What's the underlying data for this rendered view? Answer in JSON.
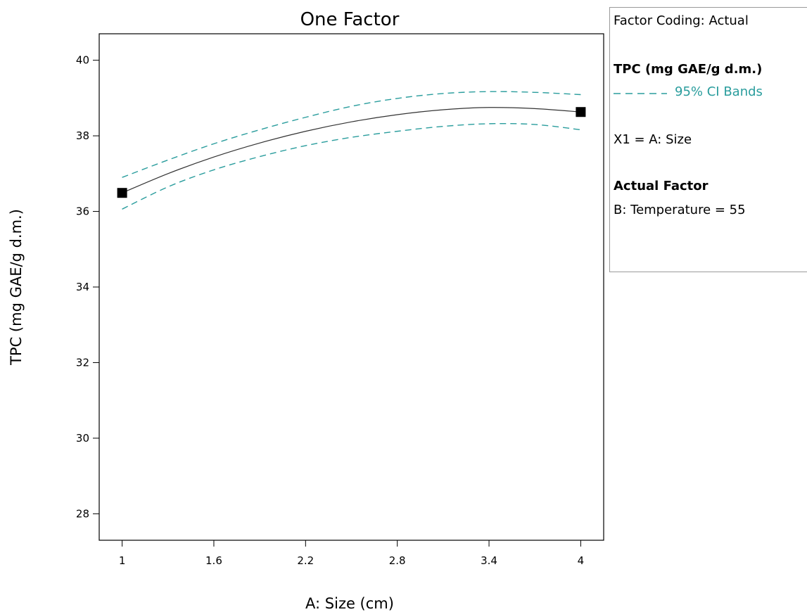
{
  "chart_data": {
    "type": "line",
    "title": "One Factor",
    "xlabel": "A: Size (cm)",
    "ylabel": "TPC (mg GAE/g d.m.)",
    "xlim": [
      0.85,
      4.15
    ],
    "ylim": [
      27.3,
      40.7
    ],
    "xticks": [
      "1",
      "1.6",
      "2.2",
      "2.8",
      "3.4",
      "4"
    ],
    "xtick_values": [
      1,
      1.6,
      2.2,
      2.8,
      3.4,
      4
    ],
    "yticks": [
      "28",
      "30",
      "32",
      "34",
      "36",
      "38",
      "40"
    ],
    "ytick_values": [
      28,
      30,
      32,
      34,
      36,
      38,
      40
    ],
    "grid": false,
    "legend_position": "right",
    "series": [
      {
        "x": [
          1.0,
          1.3,
          1.6,
          1.9,
          2.2,
          2.5,
          2.8,
          3.1,
          3.4,
          3.7,
          4.0
        ],
        "y": [
          36.49,
          37.0,
          37.44,
          37.81,
          38.12,
          38.37,
          38.56,
          38.69,
          38.75,
          38.72,
          38.63
        ],
        "style": "solid",
        "color": "#333333"
      },
      {
        "name": "95% CI Bands",
        "x": [
          1.0,
          1.3,
          1.6,
          1.9,
          2.2,
          2.5,
          2.8,
          3.1,
          3.4,
          3.7,
          4.0
        ],
        "y": [
          36.9,
          37.36,
          37.79,
          38.16,
          38.49,
          38.78,
          38.99,
          39.12,
          39.17,
          39.15,
          39.09
        ],
        "style": "dashed",
        "color": "#2a9d9d"
      },
      {
        "x": [
          1.0,
          1.3,
          1.6,
          1.9,
          2.2,
          2.5,
          2.8,
          3.1,
          3.4,
          3.7,
          4.0
        ],
        "y": [
          36.06,
          36.65,
          37.1,
          37.45,
          37.74,
          37.96,
          38.12,
          38.25,
          38.32,
          38.3,
          38.16
        ],
        "style": "dashed",
        "color": "#2a9d9d"
      }
    ],
    "points": [
      {
        "x": 1.0,
        "y": 36.49
      },
      {
        "x": 4.0,
        "y": 38.63
      }
    ]
  },
  "legend": {
    "coding": "Factor Coding: Actual",
    "response": "TPC (mg GAE/g d.m.)",
    "ci_label": "95% CI Bands",
    "x1": "X1 = A: Size",
    "actual_factor_heading": "Actual Factor",
    "actual_factor_value": "B: Temperature = 55"
  }
}
